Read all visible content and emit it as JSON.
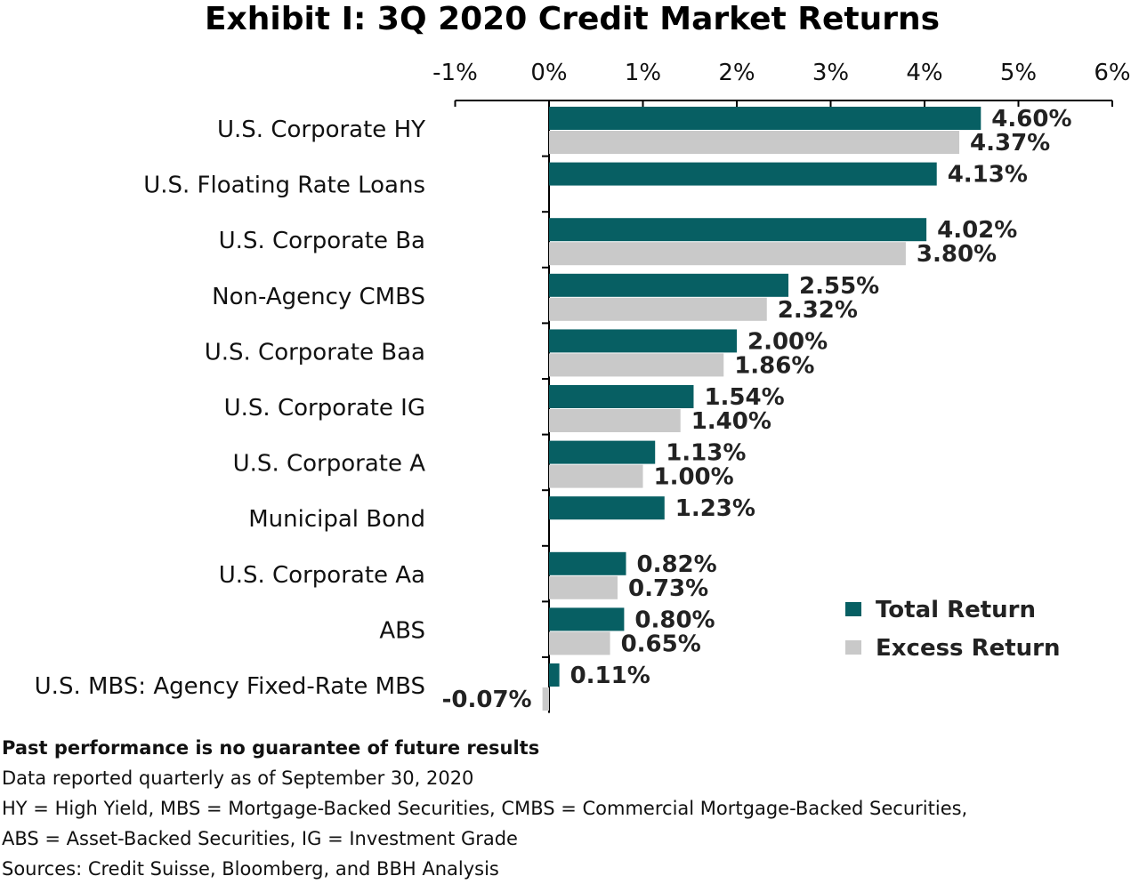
{
  "chart_data": {
    "type": "bar",
    "orientation": "horizontal",
    "title": "Exhibit I: 3Q 2020 Credit Market Returns",
    "categories": [
      "U.S. Corporate HY",
      "U.S. Floating Rate Loans",
      "U.S. Corporate Ba",
      "Non-Agency CMBS",
      "U.S. Corporate Baa",
      "U.S. Corporate IG",
      "U.S. Corporate A",
      "Municipal Bond",
      "U.S. Corporate Aa",
      "ABS",
      "U.S. MBS: Agency Fixed-Rate MBS"
    ],
    "series": [
      {
        "name": "Total Return",
        "color": "#075f63",
        "values": [
          4.6,
          4.13,
          4.02,
          2.55,
          2.0,
          1.54,
          1.13,
          1.23,
          0.82,
          0.8,
          0.11
        ],
        "labels": [
          "4.60%",
          "4.13%",
          "4.02%",
          "2.55%",
          "2.00%",
          "1.54%",
          "1.13%",
          "1.23%",
          "0.82%",
          "0.80%",
          "0.11%"
        ]
      },
      {
        "name": "Excess Return",
        "color": "#c9c9c9",
        "values": [
          4.37,
          null,
          3.8,
          2.32,
          1.86,
          1.4,
          1.0,
          null,
          0.73,
          0.65,
          -0.07
        ],
        "labels": [
          "4.37%",
          null,
          "3.80%",
          "2.32%",
          "1.86%",
          "1.40%",
          "1.00%",
          null,
          "0.73%",
          "0.65%",
          "-0.07%"
        ]
      }
    ],
    "xlim": [
      -1,
      6
    ],
    "xticks": [
      "-1%",
      "0%",
      "1%",
      "2%",
      "3%",
      "4%",
      "5%",
      "6%"
    ],
    "axis_position": "top",
    "grid": false,
    "legend_position": "bottom-right"
  },
  "footnotes": {
    "disclaimer": "Past performance is no guarantee of future results",
    "line1": "Data reported quarterly as of September 30, 2020",
    "line2": "HY = High Yield, MBS = Mortgage-Backed Securities, CMBS = Commercial Mortgage-Backed Securities,",
    "line3": "ABS = Asset-Backed Securities, IG = Investment Grade",
    "line4": "Sources: Credit Suisse, Bloomberg, and BBH Analysis"
  }
}
